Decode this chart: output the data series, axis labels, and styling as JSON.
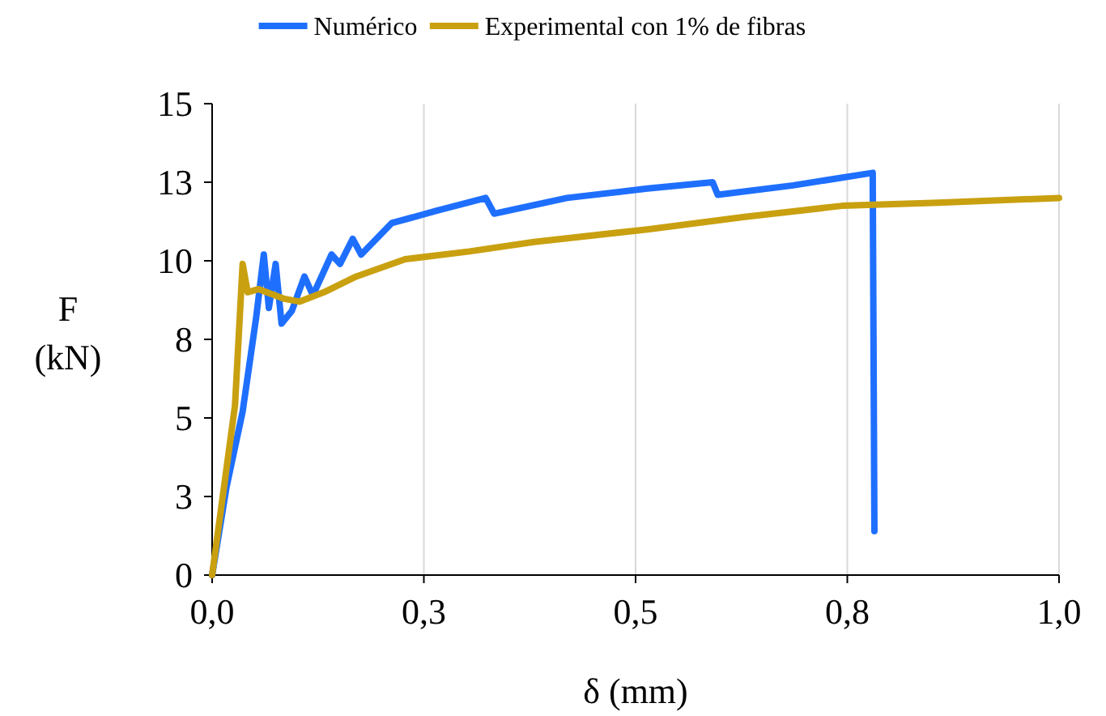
{
  "chart_data": {
    "type": "line",
    "xlabel": "δ (mm)",
    "ylabel": "F (kN)",
    "xlim": [
      0,
      1
    ],
    "ylim": [
      0,
      15
    ],
    "xticks": [
      {
        "value": 0,
        "label": "0,0"
      },
      {
        "value": 0.25,
        "label": "0,3"
      },
      {
        "value": 0.5,
        "label": "0,5"
      },
      {
        "value": 0.75,
        "label": "0,8"
      },
      {
        "value": 1,
        "label": "1,0"
      }
    ],
    "yticks": [
      0,
      {
        "value": 2.5,
        "label": "3"
      },
      5,
      {
        "value": 7.5,
        "label": "8"
      },
      10,
      {
        "value": 12.5,
        "label": "13"
      },
      15
    ],
    "grid": "x",
    "legend": "top",
    "marker": "none",
    "line_style": "solid",
    "series": [
      {
        "name": "Numérico",
        "color": "#1f6fff",
        "x": [
          0,
          0.017,
          0.036,
          0.052,
          0.061,
          0.067,
          0.075,
          0.082,
          0.094,
          0.109,
          0.119,
          0.141,
          0.151,
          0.166,
          0.176,
          0.212,
          0.266,
          0.323,
          0.333,
          0.419,
          0.514,
          0.591,
          0.597,
          0.686,
          0.78,
          0.782
        ],
        "values": [
          0,
          2.8,
          5.2,
          8.2,
          10.2,
          8.5,
          9.9,
          8.0,
          8.4,
          9.5,
          8.9,
          10.2,
          9.9,
          10.7,
          10.2,
          11.2,
          11.6,
          12.0,
          11.5,
          12.0,
          12.3,
          12.5,
          12.1,
          12.4,
          12.8,
          1.4
        ]
      },
      {
        "name": "Experimental con 1% de fibras",
        "color": "#c9a010",
        "x": [
          0,
          0.027,
          0.036,
          0.042,
          0.055,
          0.084,
          0.103,
          0.132,
          0.17,
          0.228,
          0.304,
          0.38,
          0.514,
          0.629,
          0.744,
          0.858,
          1.0
        ],
        "values": [
          0,
          5.4,
          9.9,
          9.0,
          9.1,
          8.8,
          8.7,
          9.0,
          9.5,
          10.05,
          10.3,
          10.6,
          11.0,
          11.4,
          11.75,
          11.85,
          12.0
        ]
      }
    ]
  }
}
